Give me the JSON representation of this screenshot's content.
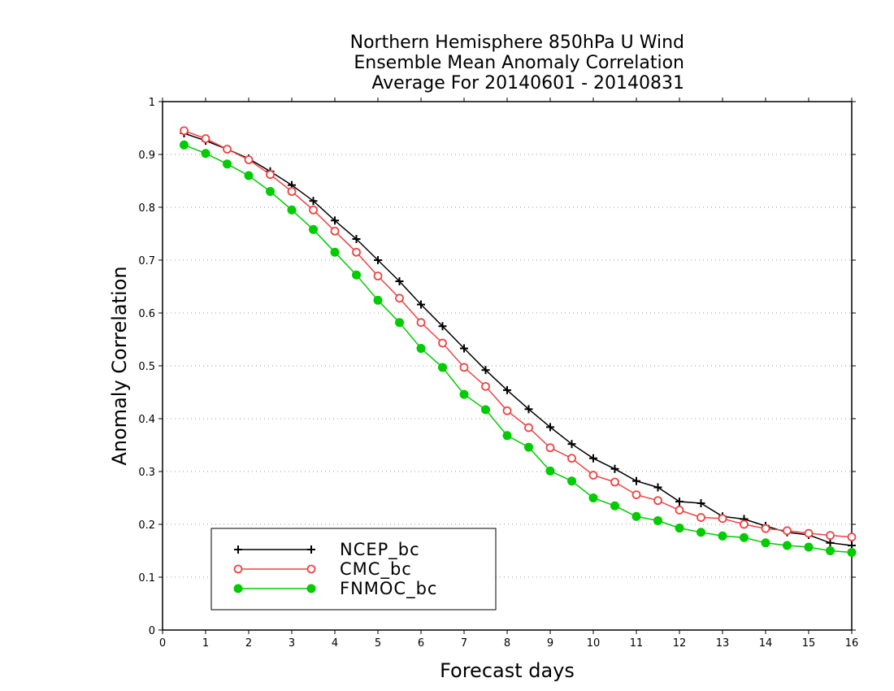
{
  "chart_data": {
    "type": "line",
    "title_lines": [
      "Northern Hemisphere 850hPa U Wind",
      "Ensemble Mean Anomaly Correlation",
      "Average For 20140601 - 20140831"
    ],
    "xlabel": "Forecast days",
    "ylabel": "Anomaly Correlation",
    "xlim": [
      0,
      16
    ],
    "ylim": [
      0,
      1
    ],
    "x_ticks": [
      "0",
      "1",
      "2",
      "3",
      "4",
      "5",
      "6",
      "7",
      "8",
      "9",
      "10",
      "11",
      "12",
      "13",
      "14",
      "15",
      "16"
    ],
    "y_ticks": [
      "0",
      "0.1",
      "0.2",
      "0.3",
      "0.4",
      "0.5",
      "0.6",
      "0.7",
      "0.8",
      "0.9",
      "1"
    ],
    "grid": "horizontal dotted",
    "legend_position": "bottom-left",
    "x": [
      0.5,
      1,
      1.5,
      2,
      2.5,
      3,
      3.5,
      4,
      4.5,
      5,
      5.5,
      6,
      6.5,
      7,
      7.5,
      8,
      8.5,
      9,
      9.5,
      10,
      10.5,
      11,
      11.5,
      12,
      12.5,
      13,
      13.5,
      14,
      14.5,
      15,
      15.5,
      16
    ],
    "series": [
      {
        "name": "NCEP_bc",
        "color": "#000000",
        "marker": "plus",
        "values": [
          0.94,
          0.926,
          0.91,
          0.892,
          0.868,
          0.842,
          0.812,
          0.775,
          0.74,
          0.7,
          0.66,
          0.616,
          0.575,
          0.533,
          0.492,
          0.454,
          0.418,
          0.384,
          0.352,
          0.325,
          0.305,
          0.282,
          0.27,
          0.243,
          0.24,
          0.215,
          0.21,
          0.197,
          0.185,
          0.18,
          0.165,
          0.16
        ]
      },
      {
        "name": "CMC_bc",
        "color": "#ee4444",
        "marker": "open-circle",
        "values": [
          0.945,
          0.93,
          0.91,
          0.89,
          0.862,
          0.83,
          0.795,
          0.755,
          0.715,
          0.67,
          0.628,
          0.582,
          0.543,
          0.497,
          0.461,
          0.415,
          0.383,
          0.345,
          0.325,
          0.293,
          0.28,
          0.256,
          0.245,
          0.227,
          0.213,
          0.211,
          0.2,
          0.192,
          0.188,
          0.183,
          0.179,
          0.176
        ]
      },
      {
        "name": "FNMOC_bc",
        "color": "#00cc00",
        "marker": "filled-circle",
        "values": [
          0.918,
          0.902,
          0.882,
          0.86,
          0.83,
          0.795,
          0.758,
          0.715,
          0.672,
          0.624,
          0.582,
          0.533,
          0.497,
          0.446,
          0.417,
          0.368,
          0.346,
          0.301,
          0.282,
          0.25,
          0.235,
          0.215,
          0.207,
          0.193,
          0.185,
          0.178,
          0.175,
          0.165,
          0.16,
          0.157,
          0.15,
          0.147
        ]
      }
    ]
  }
}
